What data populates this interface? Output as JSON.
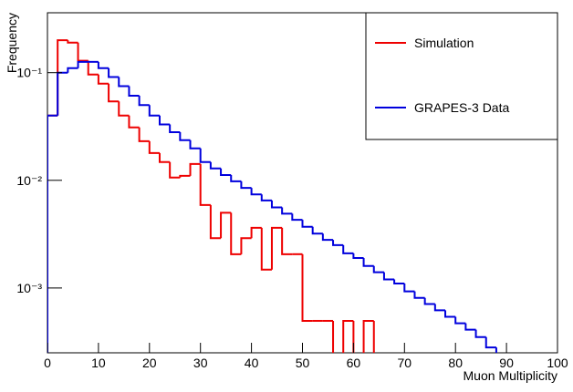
{
  "chart_data": {
    "type": "histogram",
    "x_label": "Muon Multiplicity",
    "y_label": "Frequency",
    "bins": [
      0,
      2,
      4,
      6,
      8,
      10,
      12,
      14,
      16,
      18,
      20,
      22,
      24,
      26,
      28,
      30,
      32,
      34,
      36,
      38,
      40,
      42,
      44,
      46,
      48,
      50,
      52,
      54,
      56,
      58,
      60,
      62,
      64,
      66,
      68,
      70,
      72,
      74,
      76,
      78,
      80,
      82,
      84,
      86,
      88,
      90,
      92,
      94,
      96,
      98,
      100
    ],
    "series": [
      {
        "name": "Simulation",
        "color": "#ee0000",
        "values": [
          0.04,
          0.2,
          0.19,
          0.129,
          0.096,
          0.079,
          0.054,
          0.04,
          0.031,
          0.0231,
          0.0179,
          0.0148,
          0.0106,
          0.011,
          0.0142,
          0.0059,
          0.0029,
          0.005,
          0.00206,
          0.0029,
          0.00362,
          0.00148,
          0.00362,
          0.00206,
          0.00206,
          0.000495,
          0.000495,
          0.000495,
          0,
          0.000495,
          0,
          0.000495,
          0,
          0,
          0,
          0,
          0,
          0,
          0,
          0,
          0,
          0,
          0,
          0,
          0,
          0,
          0,
          0,
          0,
          0
        ]
      },
      {
        "name": "GRAPES-3 Data",
        "color": "#0000dd",
        "values": [
          0.04,
          0.1,
          0.11,
          0.126,
          0.126,
          0.11,
          0.091,
          0.075,
          0.061,
          0.05,
          0.04,
          0.033,
          0.028,
          0.0236,
          0.0198,
          0.0148,
          0.0129,
          0.0112,
          0.0098,
          0.0085,
          0.0074,
          0.0065,
          0.0056,
          0.0049,
          0.0043,
          0.0037,
          0.0032,
          0.0028,
          0.0025,
          0.0021,
          0.0019,
          0.0016,
          0.0014,
          0.0012,
          0.0011,
          0.00093,
          0.00081,
          0.00071,
          0.00062,
          0.00054,
          0.00047,
          0.00041,
          0.00035,
          0.00028,
          0,
          0,
          0,
          0,
          0,
          0
        ]
      }
    ],
    "xlim": [
      0,
      100
    ],
    "xticks": [
      0,
      10,
      20,
      30,
      40,
      50,
      60,
      70,
      80,
      90,
      100
    ],
    "ylim": [
      0.00025,
      0.36
    ],
    "log_y": true,
    "yticks": [
      {
        "value": 0.001,
        "label": "10⁻³"
      },
      {
        "value": 0.01,
        "label": "10⁻²"
      },
      {
        "value": 0.1,
        "label": "10⁻¹"
      }
    ],
    "legend": "upper right"
  }
}
